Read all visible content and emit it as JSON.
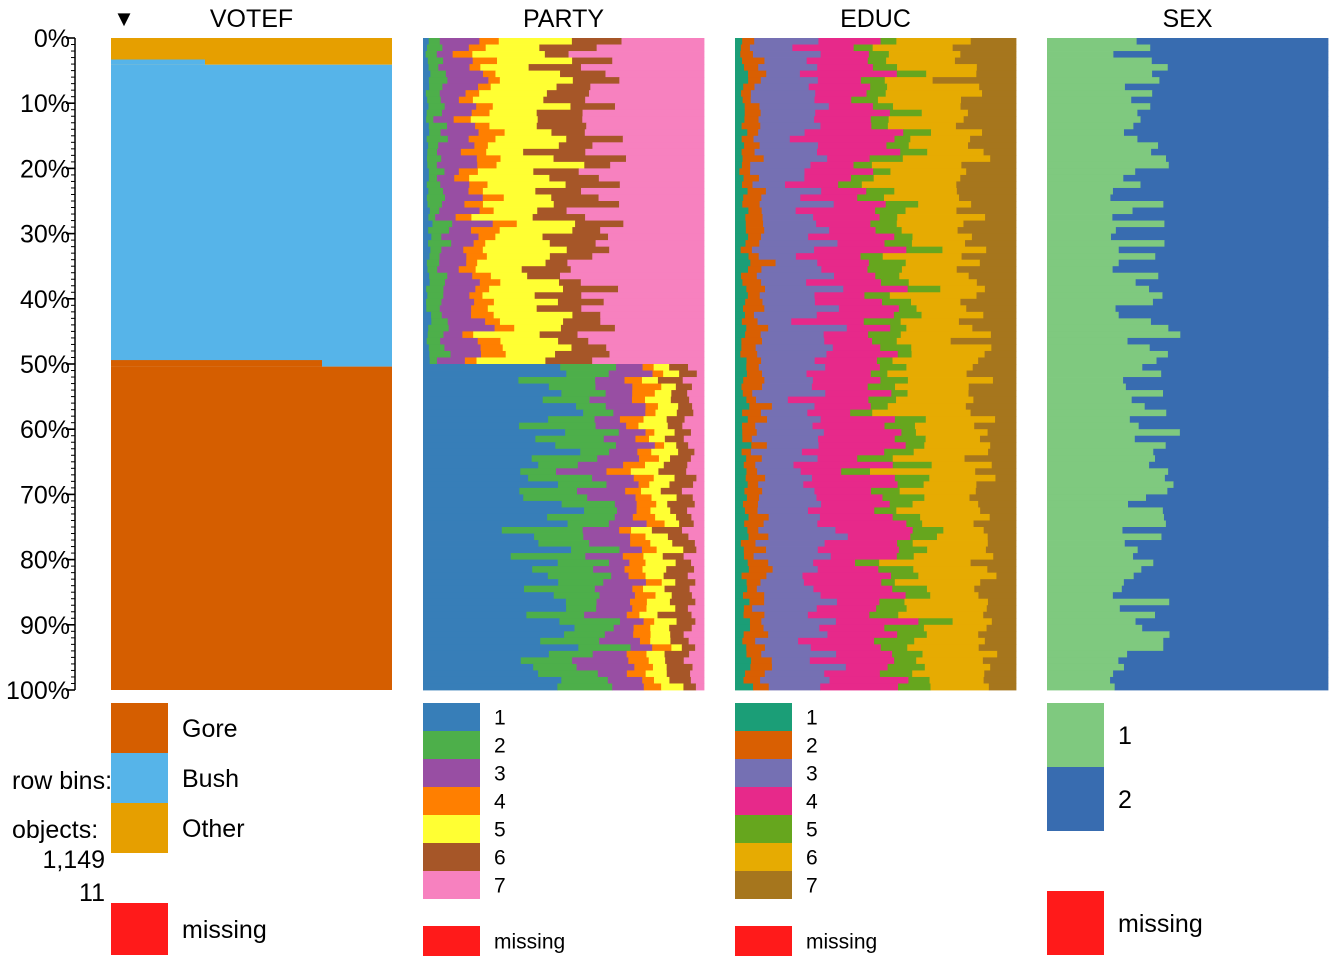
{
  "chart_data": {
    "type": "tableplot",
    "sort_indicator": "▼",
    "sorted_by": "VOTEF",
    "y_ticks": [
      "0%",
      "10%",
      "20%",
      "30%",
      "40%",
      "50%",
      "60%",
      "70%",
      "80%",
      "90%",
      "100%"
    ],
    "ylim": [
      0,
      100
    ],
    "info": {
      "row_bins_label": "row bins:",
      "objects_label": "objects:",
      "objects": "1,149",
      "bins": "11"
    },
    "columns": [
      {
        "name": "VOTEF",
        "categories": [
          {
            "label": "Gore",
            "color": "#D55E00"
          },
          {
            "label": "Bush",
            "color": "#56B4E9"
          },
          {
            "label": "Other",
            "color": "#E69F00"
          }
        ],
        "missing": {
          "label": "missing",
          "color": "#FF1A1A"
        },
        "segments": [
          {
            "from": 0,
            "to": 1.6,
            "breaks": [
              1.6,
              50.4,
              100.0
            ]
          },
          {
            "from": 1.6,
            "to": 2.6,
            "breaks": [
              1.6,
              50.4,
              100.0
            ]
          },
          {
            "from": 2.6,
            "to": 4.1,
            "breaks": [
              3.5,
              50.4,
              100.0
            ]
          },
          {
            "from": 4.1,
            "to": 5.1,
            "breaks": [
              4.1,
              50.4,
              100.0
            ]
          },
          {
            "from": 5.1,
            "to": 7.3,
            "breaks": [
              4.1,
              50.4,
              100.0
            ]
          },
          {
            "from": 7.3,
            "to": 9.0,
            "breaks": [
              4.1,
              50.4,
              100.0
            ]
          },
          {
            "from": 9.0,
            "to": 10.5,
            "breaks": [
              4.1,
              50.4,
              100.0
            ]
          },
          {
            "from": 10.5,
            "to": 13.2,
            "breaks": [
              4.1,
              50.4,
              100.0
            ]
          },
          {
            "from": 13.2,
            "to": 16.0,
            "breaks": [
              4.1,
              50.4,
              100.0
            ]
          },
          {
            "from": 16.0,
            "to": 18.7,
            "breaks": [
              4.1,
              49.6,
              100.0
            ]
          },
          {
            "from": 18.7,
            "to": 21.4,
            "breaks": [
              4.1,
              49.6,
              100.0
            ]
          },
          {
            "from": 21.4,
            "to": 24.1,
            "breaks": [
              4.1,
              49.6,
              100.0
            ]
          },
          {
            "from": 24.1,
            "to": 26.8,
            "breaks": [
              4.1,
              49.6,
              100.0
            ]
          },
          {
            "from": 26.8,
            "to": 29.5,
            "breaks": [
              4.1,
              49.6,
              100.0
            ]
          },
          {
            "from": 29.5,
            "to": 32.2,
            "breaks": [
              4.1,
              49.6,
              100.0
            ]
          },
          {
            "from": 32.2,
            "to": 34.9,
            "breaks": [
              4.1,
              49.6,
              100.0
            ]
          },
          {
            "from": 34.9,
            "to": 37.6,
            "breaks": [
              4.1,
              49.6,
              100.0
            ]
          },
          {
            "from": 37.6,
            "to": 40.3,
            "breaks": [
              4.1,
              49.6,
              100.0
            ]
          },
          {
            "from": 40.3,
            "to": 43.0,
            "breaks": [
              4.1,
              49.6,
              100.0
            ]
          },
          {
            "from": 43.0,
            "to": 45.7,
            "breaks": [
              4.1,
              49.6,
              100.0
            ]
          },
          {
            "from": 45.7,
            "to": 48.4,
            "breaks": [
              4.1,
              49.6,
              100.0
            ]
          },
          {
            "from": 48.4,
            "to": 51.1,
            "breaks": [
              4.1,
              49.6,
              100.0
            ]
          }
        ],
        "weights": [
          0.9,
          0.1,
          0.0,
          0.0
        ]
      },
      {
        "name": "PARTY",
        "categories": [
          {
            "label": "1",
            "color": "#377EB8"
          },
          {
            "label": "2",
            "color": "#4DAF4A"
          },
          {
            "label": "3",
            "color": "#984EA3"
          },
          {
            "label": "4",
            "color": "#FF7F00"
          },
          {
            "label": "5",
            "color": "#FFFF33"
          },
          {
            "label": "6",
            "color": "#A65628"
          },
          {
            "label": "7",
            "color": "#F781BF"
          }
        ],
        "missing": {
          "label": "missing",
          "color": "#FF1A1A"
        },
        "weights": [
          0.0,
          0.1,
          0.0,
          0.0
        ]
      },
      {
        "name": "EDUC",
        "categories": [
          {
            "label": "1",
            "color": "#1B9E77"
          },
          {
            "label": "2",
            "color": "#D95F02"
          },
          {
            "label": "3",
            "color": "#7570B3"
          },
          {
            "label": "4",
            "color": "#E7298A"
          },
          {
            "label": "5",
            "color": "#66A61E"
          },
          {
            "label": "6",
            "color": "#E6AB02"
          },
          {
            "label": "7",
            "color": "#A6761D"
          }
        ],
        "missing": {
          "label": "missing",
          "color": "#FF1A1A"
        },
        "weights": [
          0.0,
          0.0,
          0.1,
          0.0
        ]
      },
      {
        "name": "SEX",
        "categories": [
          {
            "label": "1",
            "color": "#7FC97F"
          },
          {
            "label": "2",
            "color": "#386CB0"
          }
        ],
        "missing": {
          "label": "missing",
          "color": "#FF1A1A"
        },
        "weights": [
          0.0,
          0.0,
          0.0,
          0.1
        ]
      }
    ]
  }
}
